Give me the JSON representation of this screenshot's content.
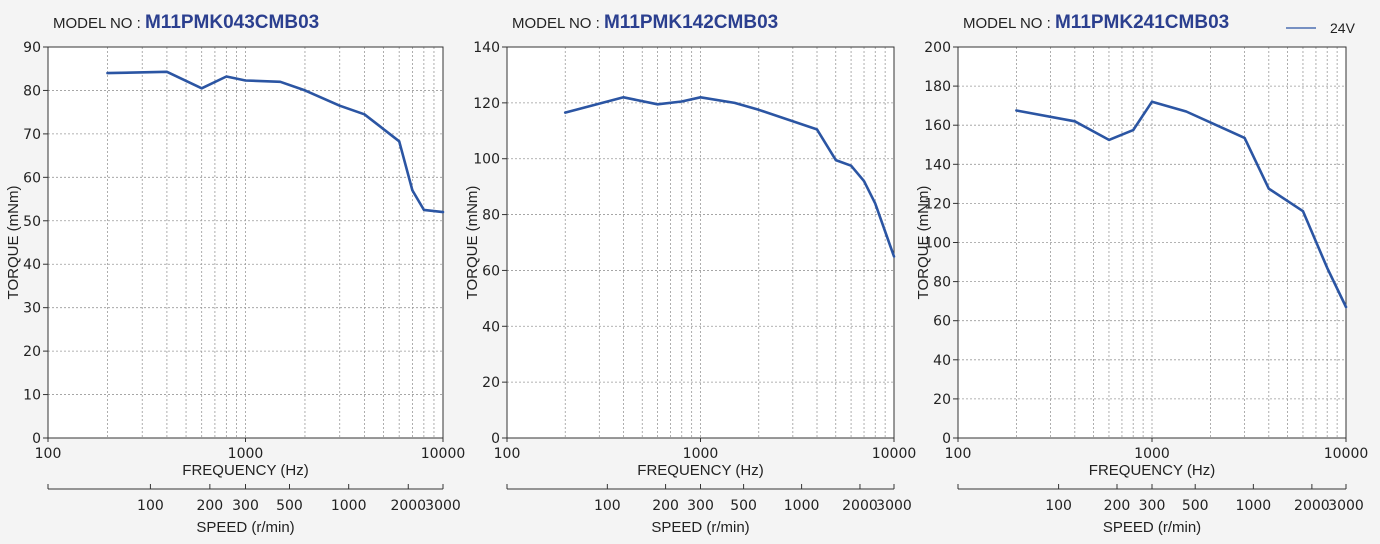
{
  "legend": {
    "label": "24V",
    "color": "#2b55a3"
  },
  "colors": {
    "series": "#2b55a3",
    "title_value": "#2b3f8f",
    "grid": "#9a9a9a",
    "axis": "#333333"
  },
  "chart_data": [
    {
      "type": "line",
      "title_prefix": "MODEL NO : ",
      "title_model": "M11PMK043CMB03",
      "xlabel": "FREQUENCY (Hz)",
      "ylabel": "TORQUE (mNm)",
      "x_scale": "log",
      "xlim": [
        100,
        10000
      ],
      "x_ticks": [
        100,
        1000,
        10000
      ],
      "x_tick_labels": [
        "100",
        "1000",
        "10000"
      ],
      "ylim": [
        0,
        90
      ],
      "y_ticks": [
        0,
        10,
        20,
        30,
        40,
        50,
        60,
        70,
        80,
        90
      ],
      "y_tick_labels": [
        "0",
        "10",
        "20",
        "30",
        "40",
        "50",
        "60",
        "70",
        "80",
        "90"
      ],
      "grid": true,
      "secondary_xlabel": "SPEED (r/min)",
      "secondary_ticks": [
        {
          "freq": 330,
          "label": "100"
        },
        {
          "freq": 660,
          "label": "200"
        },
        {
          "freq": 1000,
          "label": "300"
        },
        {
          "freq": 1670,
          "label": "500"
        },
        {
          "freq": 3330,
          "label": "1000"
        },
        {
          "freq": 6670,
          "label": "2000"
        },
        {
          "freq": 10000,
          "label": "3000"
        }
      ],
      "series": [
        {
          "name": "24V",
          "x": [
            200,
            400,
            600,
            800,
            1000,
            1500,
            2000,
            3000,
            4000,
            6000,
            7000,
            8000,
            10000
          ],
          "y": [
            84,
            84.3,
            80.5,
            83.2,
            82.3,
            82,
            80,
            76.5,
            74.5,
            68.3,
            57,
            52.5,
            52
          ]
        }
      ]
    },
    {
      "type": "line",
      "title_prefix": "MODEL NO : ",
      "title_model": "M11PMK142CMB03",
      "xlabel": "FREQUENCY (Hz)",
      "ylabel": "TORQUE (mNm)",
      "x_scale": "log",
      "xlim": [
        100,
        10000
      ],
      "x_ticks": [
        100,
        1000,
        10000
      ],
      "x_tick_labels": [
        "100",
        "1000",
        "10000"
      ],
      "ylim": [
        0,
        140
      ],
      "y_ticks": [
        0,
        20,
        40,
        60,
        80,
        100,
        120,
        140
      ],
      "y_tick_labels": [
        "0",
        "20",
        "40",
        "60",
        "80",
        "100",
        "120",
        "140"
      ],
      "grid": true,
      "secondary_xlabel": "SPEED (r/min)",
      "secondary_ticks": [
        {
          "freq": 330,
          "label": "100"
        },
        {
          "freq": 660,
          "label": "200"
        },
        {
          "freq": 1000,
          "label": "300"
        },
        {
          "freq": 1670,
          "label": "500"
        },
        {
          "freq": 3330,
          "label": "1000"
        },
        {
          "freq": 6670,
          "label": "2000"
        },
        {
          "freq": 10000,
          "label": "3000"
        }
      ],
      "series": [
        {
          "name": "24V",
          "x": [
            200,
            400,
            600,
            800,
            1000,
            1500,
            2000,
            4000,
            5000,
            6000,
            7000,
            8000,
            10000
          ],
          "y": [
            116.5,
            122,
            119.5,
            120.5,
            122,
            120,
            117.5,
            110.5,
            99.5,
            97.5,
            92,
            84,
            65
          ]
        }
      ]
    },
    {
      "type": "line",
      "title_prefix": "MODEL NO : ",
      "title_model": "M11PMK241CMB03",
      "xlabel": "FREQUENCY (Hz)",
      "ylabel": "TORQUE (mNm)",
      "x_scale": "log",
      "xlim": [
        100,
        10000
      ],
      "x_ticks": [
        100,
        1000,
        10000
      ],
      "x_tick_labels": [
        "100",
        "1000",
        "10000"
      ],
      "ylim": [
        0,
        200
      ],
      "y_ticks": [
        0,
        20,
        40,
        60,
        80,
        100,
        120,
        140,
        160,
        180,
        200
      ],
      "y_tick_labels": [
        "0",
        "20",
        "40",
        "60",
        "80",
        "100",
        "120",
        "140",
        "160",
        "180",
        "200"
      ],
      "grid": true,
      "secondary_xlabel": "SPEED (r/min)",
      "secondary_ticks": [
        {
          "freq": 330,
          "label": "100"
        },
        {
          "freq": 660,
          "label": "200"
        },
        {
          "freq": 1000,
          "label": "300"
        },
        {
          "freq": 1670,
          "label": "500"
        },
        {
          "freq": 3330,
          "label": "1000"
        },
        {
          "freq": 6670,
          "label": "2000"
        },
        {
          "freq": 10000,
          "label": "3000"
        }
      ],
      "series": [
        {
          "name": "24V",
          "x": [
            200,
            400,
            600,
            800,
            1000,
            1500,
            3000,
            4000,
            6000,
            8000,
            10000
          ],
          "y": [
            167.5,
            162,
            152.5,
            157.5,
            172,
            167,
            153.5,
            127.5,
            116,
            87,
            67
          ]
        }
      ]
    }
  ]
}
